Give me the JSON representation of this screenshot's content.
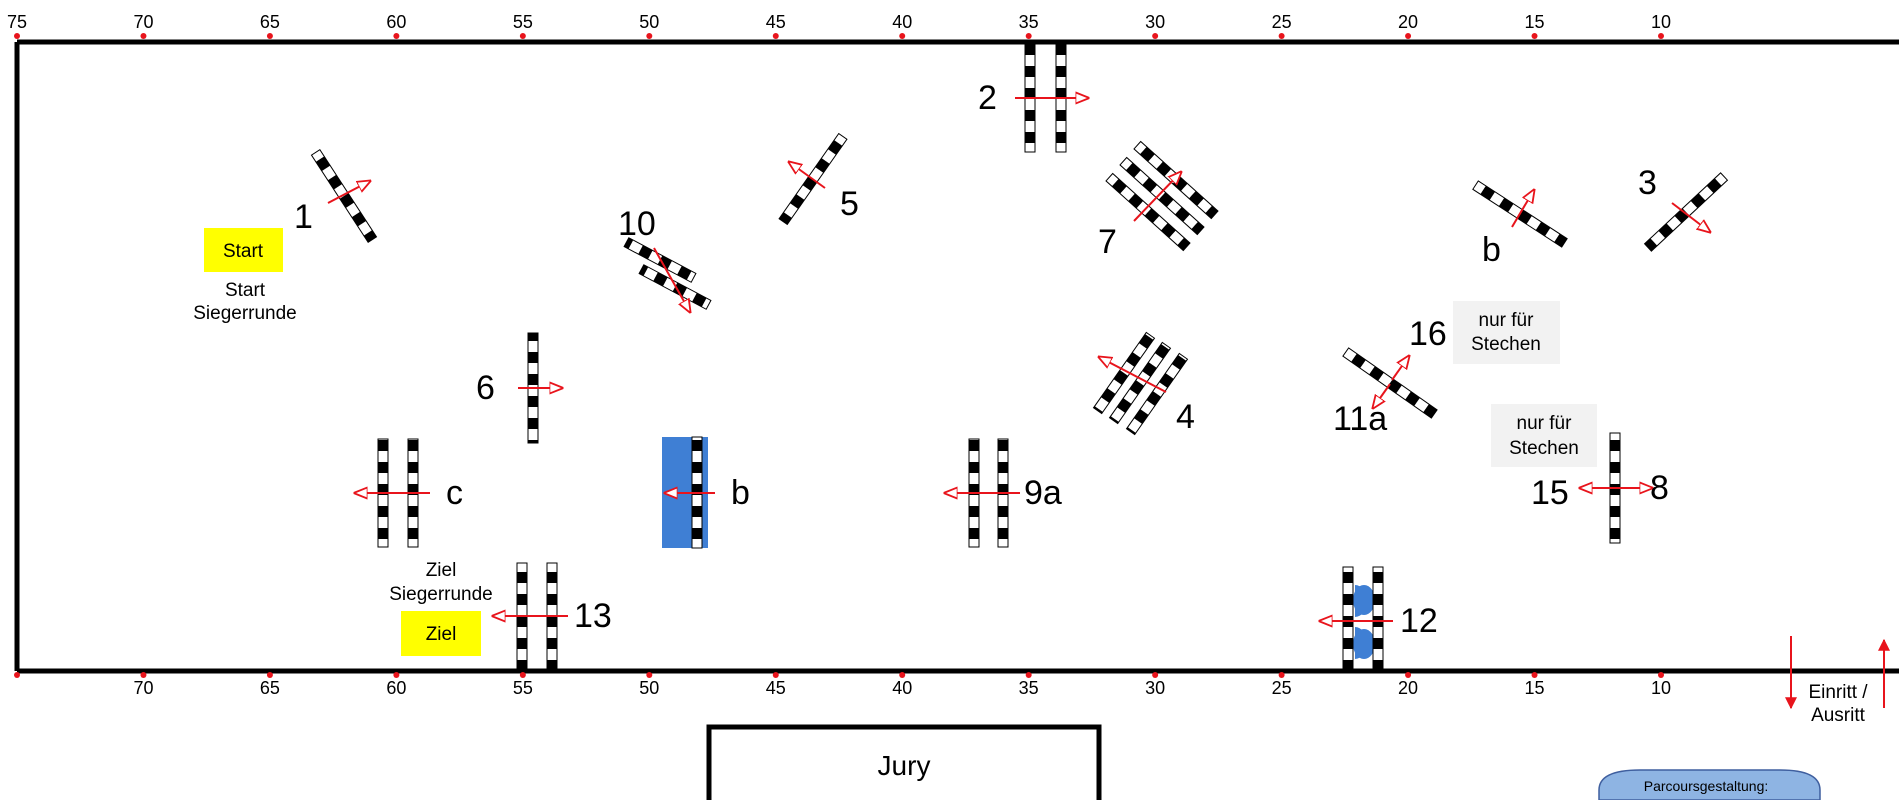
{
  "ruler": {
    "top_labels": [
      "75",
      "70",
      "65",
      "60",
      "55",
      "50",
      "45",
      "40",
      "35",
      "30",
      "25",
      "20",
      "15",
      "10"
    ],
    "bottom_labels": [
      "70",
      "65",
      "60",
      "55",
      "50",
      "45",
      "40",
      "35",
      "30",
      "25",
      "20",
      "15",
      "10"
    ]
  },
  "obstacle_numbers": {
    "n1": "1",
    "n2": "2",
    "n3": "3",
    "n4": "4",
    "n5": "5",
    "n6": "6",
    "n7": "7",
    "n8": "8",
    "n9a": "9a",
    "n10": "10",
    "n11a": "11a",
    "n12": "12",
    "n13": "13",
    "n15": "15",
    "n16": "16",
    "b_right": "b",
    "b_mid": "b",
    "c": "c"
  },
  "labels": {
    "start_box": "Start",
    "start_siegerrunde_1": "Start",
    "start_siegerrunde_2": "Siegerrunde",
    "ziel_box": "Ziel",
    "ziel_siegerrunde_1": "Ziel",
    "ziel_siegerrunde_2": "Siegerrunde",
    "nur_fuer_1a": "nur für",
    "nur_fuer_1b": "Stechen",
    "nur_fuer_2a": "nur für",
    "nur_fuer_2b": "Stechen",
    "einritt_1": "Einritt /",
    "einritt_2": "Ausritt",
    "jury": "Jury",
    "parcours": "Parcoursgestaltung:"
  },
  "colors": {
    "start_box": "#ffff00",
    "water": "#3f7fd4",
    "arrow": "#e8141c",
    "info_box": "#f2f2f2",
    "parcours_box": "#8eb4e3"
  }
}
